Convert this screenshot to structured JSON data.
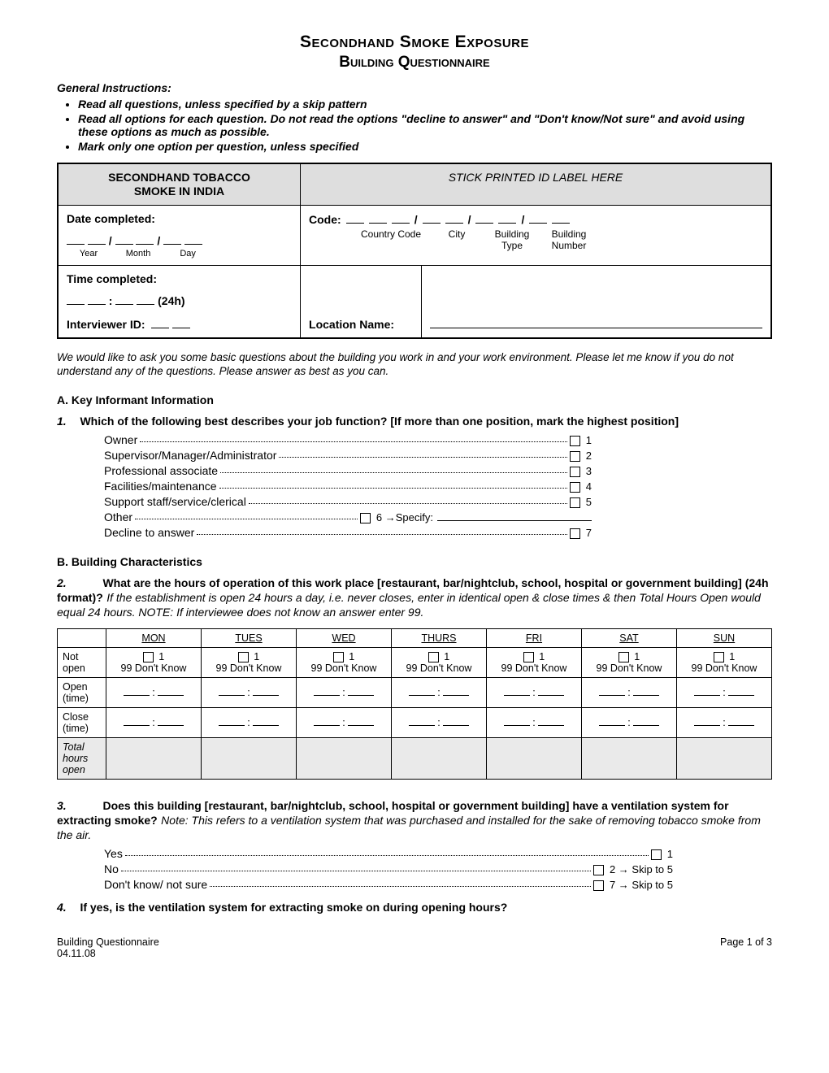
{
  "title": "Secondhand Smoke Exposure",
  "subtitle": "Building Questionnaire",
  "gi_head": "General Instructions:",
  "instructions": [
    "Read all questions, unless specified by a skip pattern",
    "Read all options for each question. Do not read the options \"decline to answer\" and \"Don't know/Not sure\" and avoid using these options as much as possible.",
    "Mark only one option per question, unless specified"
  ],
  "header": {
    "left_title_1": "SECONDHAND TOBACCO",
    "left_title_2": "SMOKE IN INDIA",
    "right_title": "STICK PRINTED ID LABEL HERE",
    "date_completed": "Date completed:",
    "year": "Year",
    "month": "Month",
    "day": "Day",
    "code": "Code:",
    "country_code": "Country Code",
    "city": "City",
    "building_type": "Building Type",
    "building_number": "Building Number",
    "time_completed": "Time completed:",
    "h24": "(24h)",
    "interviewer_id": "Interviewer ID:",
    "location_name": "Location Name:"
  },
  "intro": "We would like to ask you some basic questions about the building you work in and your work environment.  Please let me know if you do not understand any of the questions.  Please answer as best as you can.",
  "sectA": "A. Key Informant Information",
  "q1": {
    "num": "1.",
    "text": "Which of the following best describes your job function? [If more than one position, mark the highest position]",
    "opts": [
      {
        "label": "Owner",
        "n": "1"
      },
      {
        "label": "Supervisor/Manager/Administrator",
        "n": "2"
      },
      {
        "label": "Professional associate",
        "n": "3"
      },
      {
        "label": "Facilities/maintenance",
        "n": "4"
      },
      {
        "label": "Support staff/service/clerical",
        "n": "5"
      },
      {
        "label": "Other",
        "n": "6",
        "tail": "→Specify:"
      },
      {
        "label": "Decline to answer",
        "n": "7"
      }
    ]
  },
  "sectB": "B. Building Characteristics",
  "q2": {
    "num": "2.",
    "text": "What are the hours of operation of this work place [restaurant, bar/nightclub, school, hospital or government building] (24h format)?",
    "note": "If the establishment is open 24 hours a day, i.e. never closes, enter in identical open & close times & then Total Hours Open would equal 24 hours. NOTE: If interviewee does not know an answer enter 99."
  },
  "days": [
    "MON",
    "TUES",
    "WED",
    "THURS",
    "FRI",
    "SAT",
    "SUN"
  ],
  "hours_rows": {
    "not_open": "Not open",
    "notopen_cell_1": "1",
    "notopen_cell_dk": "99 Don't Know",
    "open_time": "Open (time)",
    "close_time": "Close (time)",
    "total": "Total hours open"
  },
  "q3": {
    "num": "3.",
    "text": "Does this building [restaurant, bar/nightclub, school, hospital or government building] have a ventilation system for extracting smoke?",
    "note": "Note: This refers to a ventilation system that was purchased and installed for the sake of removing tobacco smoke from the air.",
    "opts": [
      {
        "label": "Yes",
        "n": "1"
      },
      {
        "label": "No",
        "n": "2",
        "tail": "→ Skip to 5"
      },
      {
        "label": "Don't know/ not sure",
        "n": "7",
        "tail": "→ Skip to 5"
      }
    ]
  },
  "q4": {
    "num": "4.",
    "text": "If yes, is the ventilation system for extracting smoke on during opening hours?"
  },
  "footer": {
    "left1": "Building Questionnaire",
    "left2": "04.11.08",
    "right": "Page 1 of 3"
  }
}
